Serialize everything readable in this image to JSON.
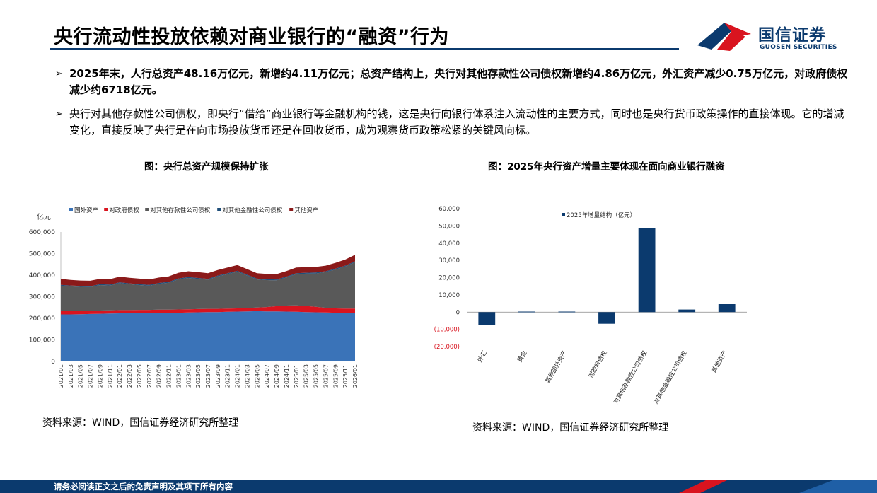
{
  "page": {
    "title": "央行流动性投放依赖对商业银行的“融资”行为",
    "logo_cn": "国信证券",
    "logo_en": "GUOSEN SECURITIES",
    "footer": "请务必阅读正文之后的免责声明及其项下所有内容"
  },
  "bullets": [
    {
      "marker": "➢",
      "text": "2025年末，人行总资产48.16万亿元，新增约4.11万亿元；总资产结构上，央行对其他存款性公司债权新增约4.86万亿元，外汇资产减少0.75万亿元，对政府债权减少约6718亿元。"
    },
    {
      "marker": "➢",
      "text": "央行对其他存款性公司债权，即央行“借给”商业银行等金融机构的钱，这是央行向银行体系注入流动性的主要方式，同时也是央行货币政策操作的直接体现。它的增减变化，直接反映了央行是在向市场投放货币还是在回收货币，成为观察货币政策松紧的关键风向标。"
    }
  ],
  "figures": {
    "left_title": "图：央行总资产规模保持扩张",
    "right_title": "图：2025年央行资产增量主要体现在面向商业银行融资",
    "left_source": "资料来源：WIND，国信证券经济研究所整理",
    "right_source": "资料来源：WIND，国信证券经济研究所整理"
  },
  "colors": {
    "brand": "#0b3a6e",
    "foreign": "#3a73b8",
    "gov": "#d9141f",
    "odc": "#595959",
    "ofi": "#1f4e79",
    "other": "#8b1a1a",
    "bar": "#0b3a6e",
    "logo_red": "#d9141f"
  },
  "chart_data": [
    {
      "type": "area",
      "stacked": true,
      "ylabel": "亿元",
      "ylim": [
        0,
        600000
      ],
      "yticks": [
        "0",
        "100,000",
        "200,000",
        "300,000",
        "400,000",
        "500,000",
        "600,000"
      ],
      "x_tick_labels": [
        "2021/01",
        "2021/03",
        "2021/05",
        "2021/07",
        "2021/09",
        "2021/11",
        "2022/01",
        "2022/03",
        "2022/05",
        "2022/07",
        "2022/09",
        "2022/11",
        "2023/01",
        "2023/03",
        "2023/05",
        "2023/07",
        "2023/09",
        "2023/11",
        "2024/01",
        "2024/03",
        "2024/05",
        "2024/07",
        "2024/09",
        "2024/11",
        "2025/01",
        "2025/03",
        "2025/05",
        "2025/07",
        "2025/09",
        "2025/11",
        "2026/01"
      ],
      "legend_position": "top",
      "series": [
        {
          "name": "国外资产",
          "values": [
            218000,
            218000,
            219000,
            220000,
            221000,
            222000,
            223000,
            223000,
            224000,
            224000,
            225000,
            225000,
            226000,
            227000,
            228000,
            229000,
            229000,
            230000,
            231000,
            232000,
            233000,
            232000,
            232000,
            231000,
            230000,
            229000,
            228000,
            227000,
            226000,
            226000,
            226000
          ]
        },
        {
          "name": "对政府债权",
          "values": [
            15000,
            15000,
            15000,
            15000,
            15000,
            15000,
            15000,
            15000,
            15000,
            15000,
            15000,
            15000,
            15000,
            15000,
            15000,
            15000,
            15000,
            15000,
            15000,
            16000,
            17000,
            20000,
            24000,
            28000,
            30000,
            28000,
            25000,
            22000,
            20000,
            19000,
            19000
          ]
        },
        {
          "name": "对其他存款性公司债权",
          "values": [
            118000,
            115000,
            112000,
            110000,
            118000,
            115000,
            125000,
            120000,
            115000,
            112000,
            120000,
            125000,
            140000,
            145000,
            140000,
            135000,
            150000,
            160000,
            170000,
            150000,
            130000,
            125000,
            120000,
            130000,
            145000,
            150000,
            155000,
            165000,
            180000,
            195000,
            215000
          ]
        },
        {
          "name": "对其他金融性公司债权",
          "values": [
            4000,
            4000,
            4000,
            4000,
            4000,
            4000,
            4000,
            4000,
            4000,
            4000,
            4000,
            4000,
            4000,
            4000,
            4000,
            4000,
            4000,
            4000,
            4000,
            4000,
            4000,
            4000,
            4000,
            4000,
            4000,
            4000,
            4000,
            4000,
            4000,
            4000,
            4000
          ]
        },
        {
          "name": "其他资产",
          "values": [
            28000,
            26000,
            25000,
            25000,
            25000,
            25000,
            26000,
            26000,
            26000,
            25000,
            25000,
            25000,
            26000,
            27000,
            27000,
            26000,
            26000,
            26000,
            27000,
            26000,
            25000,
            25000,
            25000,
            26000,
            26000,
            26000,
            26000,
            26000,
            27000,
            28000,
            30000
          ]
        }
      ]
    },
    {
      "type": "bar",
      "title": "",
      "ylabel": "",
      "ylim": [
        -20000,
        60000
      ],
      "yticks": [
        "(20,000)",
        "(10,000)",
        "0",
        "10,000",
        "20,000",
        "30,000",
        "40,000",
        "50,000",
        "60,000"
      ],
      "legend_position": "top",
      "categories": [
        "外汇",
        "黄金",
        "其他国外资产",
        "对政府债权",
        "对其他存款性公司债权",
        "对其他金融性公司债权",
        "其他资产"
      ],
      "series": [
        {
          "name": "2025年增量结构（亿元）",
          "values": [
            -7500,
            300,
            300,
            -6718,
            48600,
            1500,
            4600
          ]
        }
      ]
    }
  ]
}
